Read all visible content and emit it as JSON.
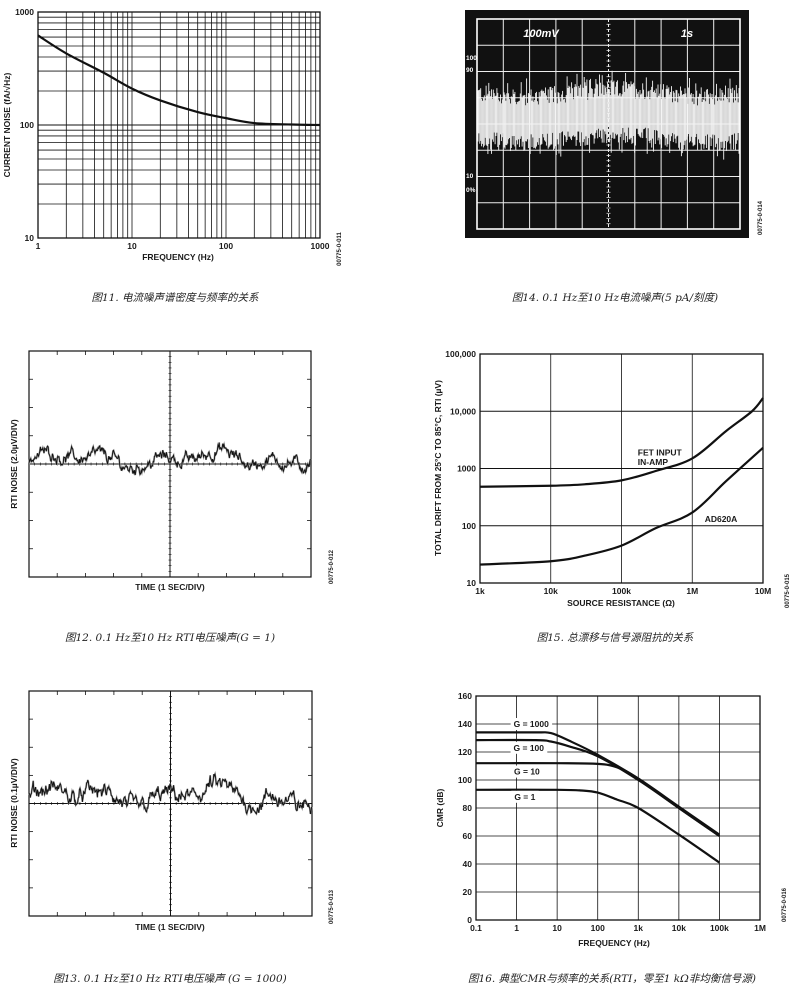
{
  "chart_data": [
    {
      "id": "fig11",
      "type": "line",
      "title": "图11. 电流噪声谱密度与频率的关系",
      "xlabel": "FREQUENCY (Hz)",
      "ylabel": "CURRENT NOISE (fA/√Hz)",
      "code": "00775-0-011",
      "xscale": "log",
      "yscale": "log",
      "xlim": [
        1,
        1000
      ],
      "ylim": [
        10,
        1000
      ],
      "grid": "full-log",
      "x_ticks": [
        {
          "value": 1,
          "label": "1"
        },
        {
          "value": 10,
          "label": "10"
        },
        {
          "value": 100,
          "label": "100"
        },
        {
          "value": 1000,
          "label": "1000"
        }
      ],
      "y_ticks": [
        {
          "value": 10,
          "label": "10"
        },
        {
          "value": 100,
          "label": "100"
        },
        {
          "value": 1000,
          "label": "1000"
        }
      ],
      "series": [
        {
          "name": "current noise",
          "x": [
            1,
            2,
            5,
            10,
            20,
            50,
            100,
            200,
            500,
            1000
          ],
          "y": [
            620,
            430,
            290,
            210,
            165,
            130,
            115,
            104,
            101,
            100
          ]
        }
      ],
      "annotations": []
    },
    {
      "id": "fig14",
      "type": "line",
      "title": "图14. 0.1 Hz至10 Hz电流噪声(5 pA/刻度)",
      "code": "00775-0-014",
      "scope": {
        "vertical_scale": "100mV",
        "time_scale": "1s",
        "markers": [
          "100",
          "90",
          "10",
          "0%"
        ]
      },
      "divisions": {
        "x": 10,
        "y": 8
      }
    },
    {
      "id": "fig12",
      "type": "line",
      "title": "图12. 0.1 Hz至10 Hz RTI电压噪声(G = 1)",
      "xlabel": "TIME (1 SEC/DIV)",
      "ylabel": "RTI NOISE (2.0µV/DIV)",
      "code": "00775-0-012",
      "divisions": {
        "x": 10,
        "y": 8
      },
      "noise_peak_divisions": 1.0
    },
    {
      "id": "fig15",
      "type": "line",
      "title": "图15. 总漂移与信号源阻抗的关系",
      "xlabel": "SOURCE RESISTANCE (Ω)",
      "ylabel": "TOTAL DRIFT FROM 25°C TO 85°C, RTI (µV)",
      "code": "00775-0-015",
      "xscale": "log",
      "yscale": "log",
      "xlim": [
        1000,
        10000000
      ],
      "ylim": [
        10,
        100000
      ],
      "grid": "decade",
      "x_ticks": [
        {
          "value": 1000,
          "label": "1k"
        },
        {
          "value": 10000,
          "label": "10k"
        },
        {
          "value": 100000,
          "label": "100k"
        },
        {
          "value": 1000000,
          "label": "1M"
        },
        {
          "value": 10000000,
          "label": "10M"
        }
      ],
      "y_ticks": [
        {
          "value": 10,
          "label": "10"
        },
        {
          "value": 100,
          "label": "100"
        },
        {
          "value": 1000,
          "label": "1000"
        },
        {
          "value": 10000,
          "label": "10,000"
        },
        {
          "value": 100000,
          "label": "100,000"
        }
      ],
      "series": [
        {
          "name": "FET INPUT IN-AMP",
          "x": [
            1000,
            10000,
            30000,
            100000,
            300000,
            1000000,
            3000000,
            7000000,
            10000000
          ],
          "y": [
            480,
            500,
            530,
            620,
            900,
            1500,
            4500,
            10000,
            17000
          ]
        },
        {
          "name": "AD620A",
          "x": [
            1000,
            10000,
            30000,
            100000,
            300000,
            1000000,
            3000000,
            10000000
          ],
          "y": [
            21,
            24,
            30,
            45,
            90,
            170,
            600,
            2300
          ]
        }
      ],
      "annotations": [
        {
          "text": "FET INPUT",
          "x": 170000,
          "y": 1900
        },
        {
          "text": "IN-AMP",
          "x": 170000,
          "y": 1300
        },
        {
          "text": "AD620A",
          "x": 1500000,
          "y": 130
        }
      ]
    },
    {
      "id": "fig13",
      "type": "line",
      "title": "图13. 0.1 Hz至10 Hz RTI电压噪声 (G = 1000)",
      "xlabel": "TIME (1 SEC/DIV)",
      "ylabel": "RTI NOISE (0.1µV/DIV)",
      "code": "00775-0-013",
      "divisions": {
        "x": 10,
        "y": 8
      },
      "noise_peak_divisions": 1.3
    },
    {
      "id": "fig16",
      "type": "line",
      "title": "图16. 典型CMR与频率的关系(RTI，零至1 kΩ非均衡信号源)",
      "xlabel": "FREQUENCY (Hz)",
      "ylabel": "CMR (dB)",
      "code": "00775-0-016",
      "xscale": "log",
      "yscale": "linear",
      "xlim": [
        0.1,
        1000000
      ],
      "ylim": [
        0,
        160
      ],
      "grid": "decade-x-20y",
      "x_ticks": [
        {
          "value": 0.1,
          "label": "0.1"
        },
        {
          "value": 1,
          "label": "1"
        },
        {
          "value": 10,
          "label": "10"
        },
        {
          "value": 100,
          "label": "100"
        },
        {
          "value": 1000,
          "label": "1k"
        },
        {
          "value": 10000,
          "label": "10k"
        },
        {
          "value": 100000,
          "label": "100k"
        },
        {
          "value": 1000000,
          "label": "1M"
        }
      ],
      "y_ticks": [
        {
          "value": 0,
          "label": "0"
        },
        {
          "value": 20,
          "label": "20"
        },
        {
          "value": 40,
          "label": "40"
        },
        {
          "value": 60,
          "label": "60"
        },
        {
          "value": 80,
          "label": "80"
        },
        {
          "value": 100,
          "label": "100"
        },
        {
          "value": 120,
          "label": "120"
        },
        {
          "value": 140,
          "label": "140"
        },
        {
          "value": 160,
          "label": "160"
        }
      ],
      "series": [
        {
          "name": "G = 1000",
          "x": [
            0.1,
            3,
            7,
            20,
            100,
            1000,
            10000,
            100000
          ],
          "y": [
            134,
            134,
            133.5,
            128,
            118,
            101,
            81,
            61
          ]
        },
        {
          "name": "G = 100",
          "x": [
            0.1,
            3,
            7,
            20,
            100,
            1000,
            10000,
            100000
          ],
          "y": [
            128.5,
            128.5,
            127.5,
            124,
            117,
            100,
            80,
            60
          ]
        },
        {
          "name": "G = 10",
          "x": [
            0.1,
            10,
            100,
            300,
            1000,
            10000,
            100000
          ],
          "y": [
            112,
            112,
            111.5,
            109,
            101,
            80,
            60
          ]
        },
        {
          "name": "G = 1",
          "x": [
            0.1,
            10,
            40,
            100,
            300,
            1000,
            10000,
            100000
          ],
          "y": [
            93,
            93,
            92.5,
            91,
            86,
            80,
            61,
            41
          ]
        }
      ],
      "annotations": [
        {
          "text": "G = 1000",
          "x": 2.3,
          "y": 140
        },
        {
          "text": "G = 100",
          "x": 2.0,
          "y": 123
        },
        {
          "text": "G = 10",
          "x": 1.8,
          "y": 106
        },
        {
          "text": "G = 1",
          "x": 1.6,
          "y": 88
        }
      ]
    }
  ]
}
